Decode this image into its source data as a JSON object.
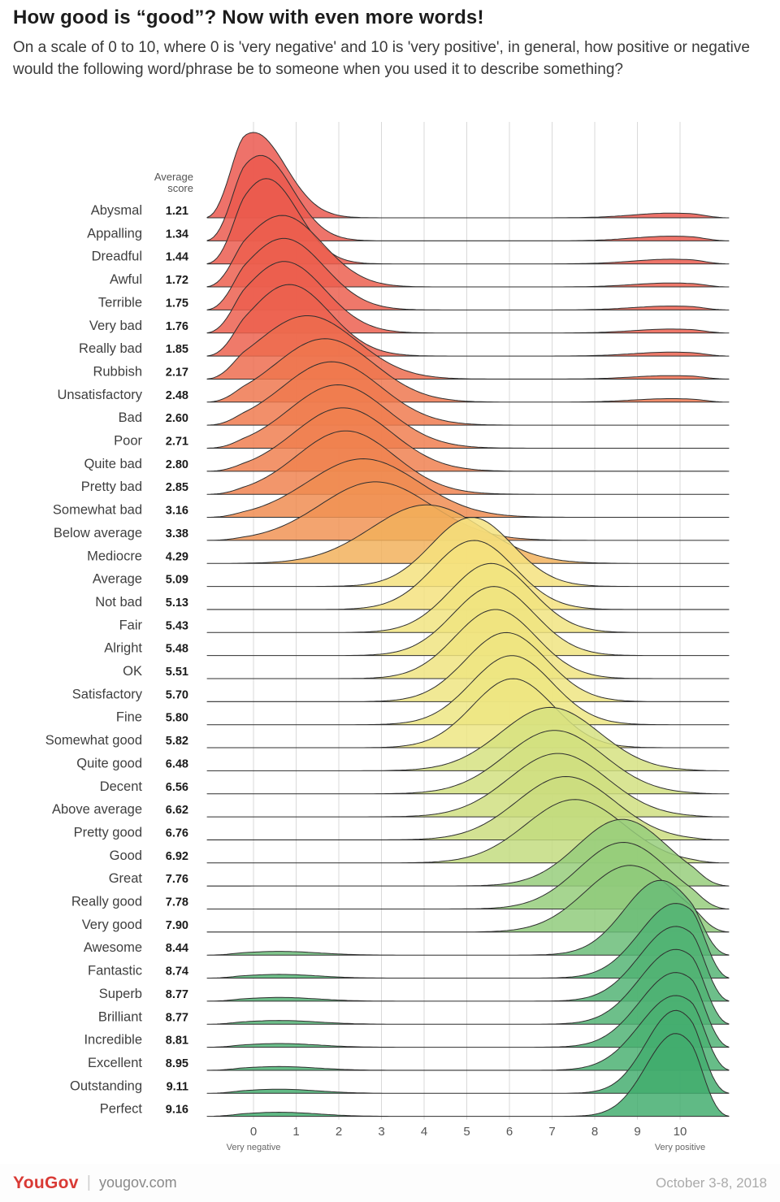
{
  "header": {
    "title": "How good is “good”? Now with even more words!",
    "subtitle": "On a scale of 0 to 10, where 0 is 'very negative' and 10 is 'very positive', in general, how positive or negative would the following word/phrase be to someone when you used it to describe something?"
  },
  "chart_data": {
    "type": "area",
    "variant": "ridgeline-density",
    "title": "How good is “good”? Now with even more words!",
    "score_column_header": "Average score",
    "categories": [
      "Abysmal",
      "Appalling",
      "Dreadful",
      "Awful",
      "Terrible",
      "Very bad",
      "Really bad",
      "Rubbish",
      "Unsatisfactory",
      "Bad",
      "Poor",
      "Quite bad",
      "Pretty bad",
      "Somewhat bad",
      "Below average",
      "Mediocre",
      "Average",
      "Not bad",
      "Fair",
      "Alright",
      "OK",
      "Satisfactory",
      "Fine",
      "Somewhat good",
      "Quite good",
      "Decent",
      "Above average",
      "Pretty good",
      "Good",
      "Great",
      "Really good",
      "Very good",
      "Awesome",
      "Fantastic",
      "Superb",
      "Brilliant",
      "Incredible",
      "Excellent",
      "Outstanding",
      "Perfect"
    ],
    "values": [
      "1.21",
      "1.34",
      "1.44",
      "1.72",
      "1.75",
      "1.76",
      "1.85",
      "2.17",
      "2.48",
      "2.60",
      "2.71",
      "2.80",
      "2.85",
      "3.16",
      "3.38",
      "4.29",
      "5.09",
      "5.13",
      "5.43",
      "5.48",
      "5.51",
      "5.70",
      "5.80",
      "5.82",
      "6.48",
      "6.56",
      "6.62",
      "6.76",
      "6.92",
      "7.76",
      "7.78",
      "7.90",
      "8.44",
      "8.74",
      "8.77",
      "8.77",
      "8.81",
      "8.95",
      "9.11",
      "9.16"
    ],
    "xlim": [
      0,
      10
    ],
    "x_ticks": [
      0,
      1,
      2,
      3,
      4,
      5,
      6,
      7,
      8,
      9,
      10
    ],
    "x_min_label": "Very negative",
    "x_max_label": "Very positive",
    "grid": "vertical",
    "legend": "none",
    "color_scale_stops": [
      [
        0.0,
        "#e8474e"
      ],
      [
        1.8,
        "#ec5f4d"
      ],
      [
        3.0,
        "#f0874f"
      ],
      [
        4.3,
        "#f2b05b"
      ],
      [
        5.0,
        "#f5e07c"
      ],
      [
        5.9,
        "#ece783"
      ],
      [
        6.8,
        "#c8dd7e"
      ],
      [
        7.9,
        "#8fcb7b"
      ],
      [
        8.8,
        "#4fb274"
      ],
      [
        10.0,
        "#23a05f"
      ]
    ]
  },
  "colors": {
    "brand_red": "#d93a35",
    "curve_outline": "#2f2f2f",
    "gridline": "#d9d9d9"
  },
  "footer": {
    "brand": "YouGov",
    "site": "yougov.com",
    "date": "October 3-8, 2018"
  }
}
